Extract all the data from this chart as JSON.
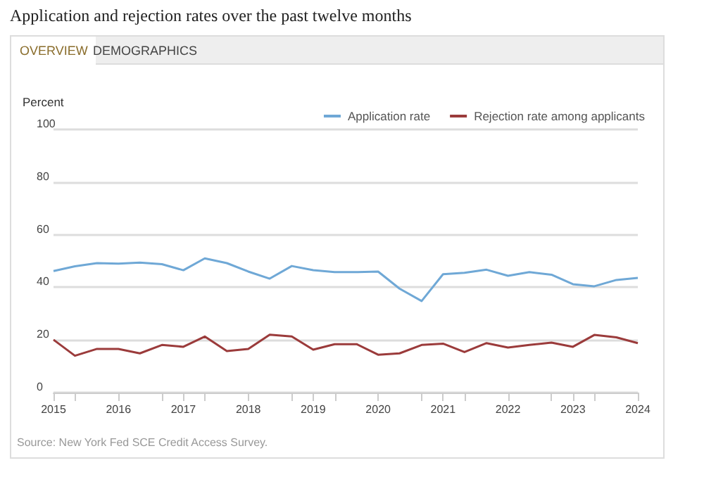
{
  "chart_data": {
    "type": "line",
    "title": "Application and rejection rates over the past twelve months",
    "ylabel": "Percent",
    "annotations": [
      "OVERVIEW",
      "DEMOGRAPHICS",
      "Source: New York Fed SCE Credit Access Survey."
    ],
    "x": [
      2015,
      2015.33,
      2015.67,
      2016,
      2016.33,
      2016.67,
      2017,
      2017.33,
      2017.67,
      2018,
      2018.33,
      2018.67,
      2019,
      2019.33,
      2019.67,
      2020,
      2020.33,
      2020.67,
      2021,
      2021.33,
      2021.67,
      2022,
      2022.33,
      2022.67,
      2023,
      2023.33,
      2023.67,
      2024
    ],
    "series": [
      {
        "name": "Application rate",
        "color": "#6fa8d6",
        "values": [
          46.2,
          48,
          49.2,
          49,
          49.4,
          48.8,
          46.5,
          51,
          49.2,
          46,
          43.3,
          48.1,
          46.5,
          45.8,
          45.8,
          46,
          39.5,
          34.8,
          45,
          45.5,
          46.7,
          44.4,
          45.8,
          44.8,
          41.2,
          40.4,
          42.8,
          43.6
        ]
      },
      {
        "name": "Rejection rate among applicants",
        "color": "#9b3b3b",
        "values": [
          20.1,
          14,
          16.6,
          16.6,
          14.9,
          18.1,
          17.4,
          21.3,
          15.8,
          16.6,
          22,
          21.3,
          16.3,
          18.4,
          18.4,
          14.4,
          14.9,
          18.1,
          18.6,
          15.4,
          18.8,
          17.1,
          18.1,
          19,
          17.4,
          21.9,
          21,
          18.8
        ]
      }
    ],
    "xlim": [
      2015,
      2024
    ],
    "xticks": [
      2015,
      2016,
      2017,
      2018,
      2019,
      2020,
      2021,
      2022,
      2023,
      2024
    ],
    "ylim": [
      0,
      100
    ],
    "yticks": [
      0,
      20,
      40,
      60,
      80,
      100
    ],
    "grid": "y",
    "legend": "top right",
    "marker": "none",
    "line_style": "solid"
  }
}
